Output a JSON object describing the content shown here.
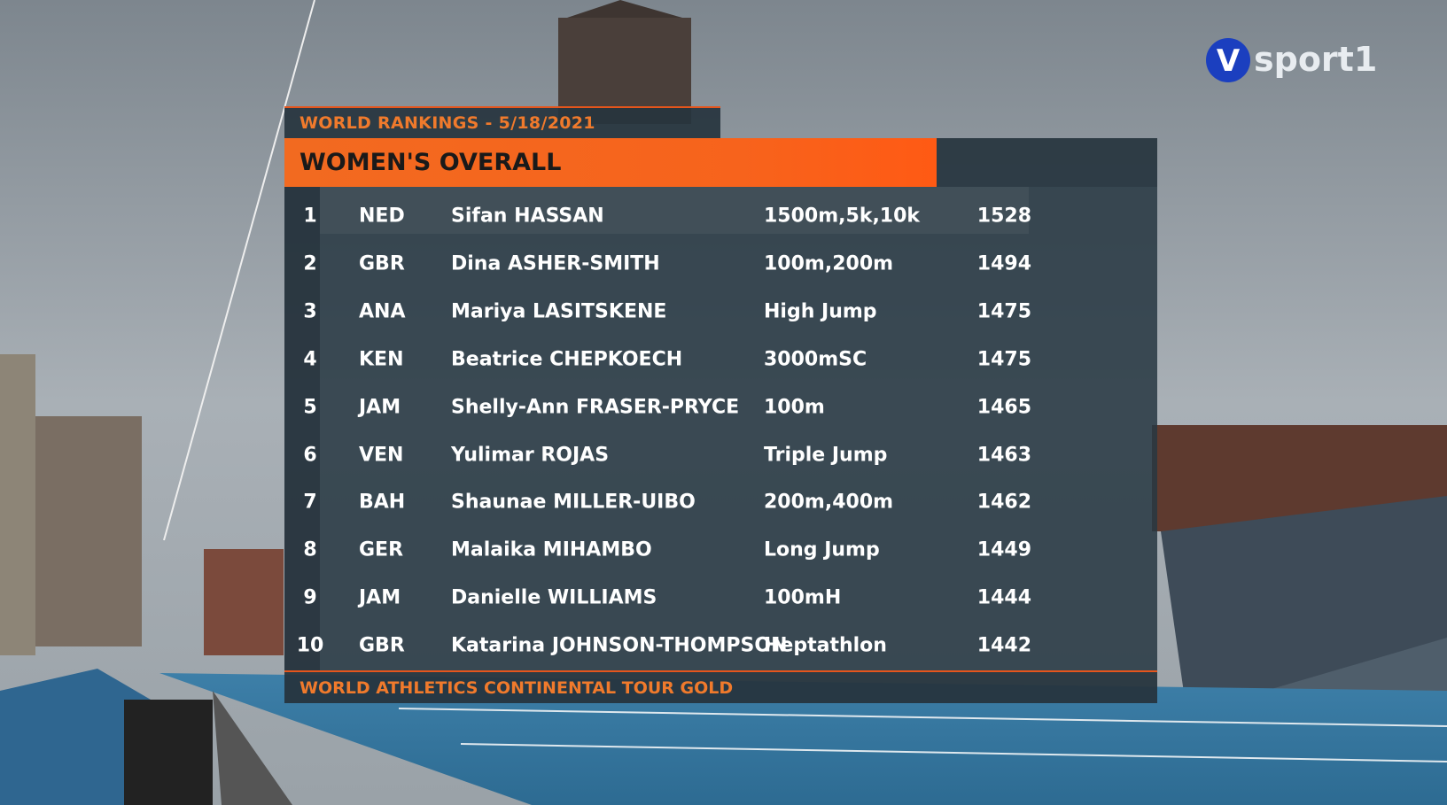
{
  "header": {
    "subtitle": "WORLD RANKINGS - 5/18/2021",
    "title": "WOMEN'S OVERALL"
  },
  "table": {
    "rows": [
      [
        1,
        "NED",
        "Sifan HASSAN",
        "1500m,5k,10k",
        1528
      ],
      [
        2,
        "GBR",
        "Dina ASHER-SMITH",
        "100m,200m",
        1494
      ],
      [
        3,
        "ANA",
        "Mariya LASITSKENE",
        "High Jump",
        1475
      ],
      [
        4,
        "KEN",
        "Beatrice CHEPKOECH",
        "3000mSC",
        1475
      ],
      [
        5,
        "JAM",
        "Shelly-Ann FRASER-PRYCE",
        "100m",
        1465
      ],
      [
        6,
        "VEN",
        "Yulimar ROJAS",
        "Triple Jump",
        1463
      ],
      [
        7,
        "BAH",
        "Shaunae MILLER-UIBO",
        "200m,400m",
        1462
      ],
      [
        8,
        "GER",
        "Malaika MIHAMBO",
        "Long Jump",
        1449
      ],
      [
        9,
        "JAM",
        "Danielle WILLIAMS",
        "100mH",
        1444
      ],
      [
        10,
        "GBR",
        "Katarina JOHNSON-THOMPSON",
        "Heptathlon",
        1442
      ]
    ]
  },
  "footer": "WORLD ATHLETICS CONTINENTAL TOUR GOLD",
  "logo": {
    "mark": "V",
    "text": "sport1"
  }
}
